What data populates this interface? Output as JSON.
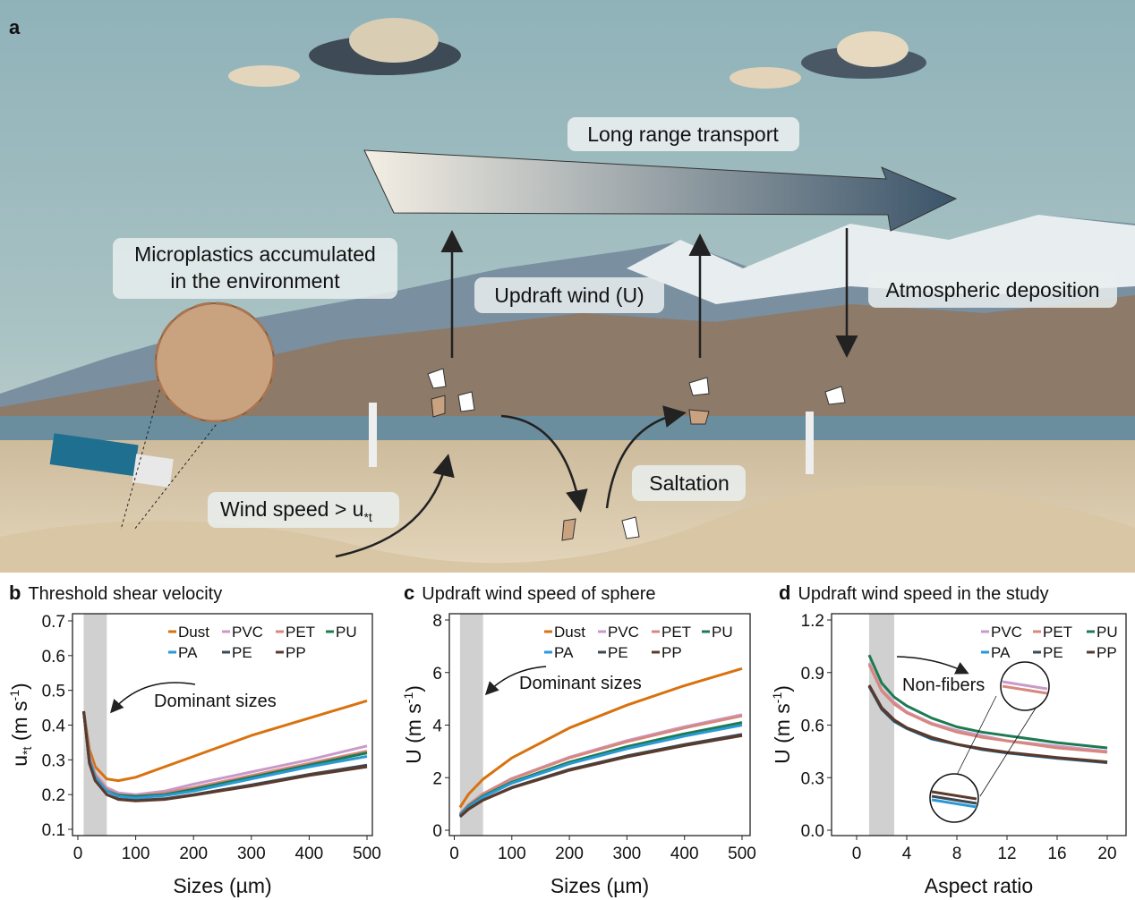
{
  "panel_a": {
    "letter": "a",
    "labels": {
      "long_range": "Long range transport",
      "micro_1": "Microplastics accumulated",
      "micro_2": "in the environment",
      "updraft": "Updraft wind (U)",
      "deposition": "Atmospheric deposition",
      "saltation": "Saltation",
      "wind_speed": "Wind speed > u",
      "wind_speed_sub": "*t"
    }
  },
  "colors": {
    "Dust": "#d8720f",
    "PVC": "#c99ac9",
    "PET": "#d8877c",
    "PU": "#1e7a50",
    "PA": "#2a9ad6",
    "PE": "#3c4853",
    "PP": "#5b3a2c",
    "band": "#d0d0d0"
  },
  "chart_data": [
    {
      "id": "b",
      "type": "line",
      "letter": "b",
      "title": "Threshold shear velocity",
      "xlabel": "Sizes (µm)",
      "ylabel": {
        "main": "u",
        "sub": "*t",
        "unit": " (m s",
        "sup": "-1",
        "close": ")"
      },
      "xlim": [
        0,
        500
      ],
      "ylim": [
        0.1,
        0.7
      ],
      "xticks": [
        "0",
        "100",
        "200",
        "300",
        "400",
        "500"
      ],
      "yticks": [
        "0.1",
        "0.2",
        "0.3",
        "0.4",
        "0.5",
        "0.6",
        "0.7"
      ],
      "shaded_range": [
        10,
        50
      ],
      "annotation": "Dominant sizes",
      "legend": [
        "Dust",
        "PVC",
        "PET",
        "PU",
        "PA",
        "PE",
        "PP"
      ],
      "x": [
        10,
        20,
        30,
        50,
        70,
        100,
        150,
        200,
        300,
        400,
        500
      ],
      "series": [
        {
          "name": "Dust",
          "values": [
            0.44,
            0.33,
            0.28,
            0.245,
            0.24,
            0.25,
            0.28,
            0.31,
            0.37,
            0.42,
            0.47
          ]
        },
        {
          "name": "PVC",
          "values": [
            0.44,
            0.31,
            0.26,
            0.22,
            0.205,
            0.2,
            0.21,
            0.23,
            0.265,
            0.3,
            0.34
          ]
        },
        {
          "name": "PET",
          "values": [
            0.44,
            0.305,
            0.255,
            0.215,
            0.2,
            0.195,
            0.205,
            0.22,
            0.255,
            0.29,
            0.325
          ]
        },
        {
          "name": "PU",
          "values": [
            0.44,
            0.3,
            0.25,
            0.21,
            0.198,
            0.195,
            0.2,
            0.215,
            0.25,
            0.285,
            0.32
          ]
        },
        {
          "name": "PA",
          "values": [
            0.44,
            0.3,
            0.25,
            0.21,
            0.195,
            0.19,
            0.197,
            0.21,
            0.245,
            0.28,
            0.31
          ]
        },
        {
          "name": "PE",
          "values": [
            0.44,
            0.29,
            0.24,
            0.2,
            0.187,
            0.183,
            0.188,
            0.2,
            0.228,
            0.258,
            0.285
          ]
        },
        {
          "name": "PP",
          "values": [
            0.44,
            0.29,
            0.24,
            0.2,
            0.186,
            0.182,
            0.186,
            0.198,
            0.225,
            0.255,
            0.28
          ]
        }
      ]
    },
    {
      "id": "c",
      "type": "line",
      "letter": "c",
      "title": "Updraft wind speed of sphere",
      "xlabel": "Sizes (µm)",
      "ylabel": {
        "main": "U",
        "sub": "",
        "unit": " (m s",
        "sup": "-1",
        "close": ")"
      },
      "xlim": [
        0,
        500
      ],
      "ylim": [
        0,
        8
      ],
      "xticks": [
        "0",
        "100",
        "200",
        "300",
        "400",
        "500"
      ],
      "yticks": [
        "0",
        "2",
        "4",
        "6",
        "8"
      ],
      "shaded_range": [
        10,
        50
      ],
      "annotation": "Dominant sizes",
      "legend": [
        "Dust",
        "PVC",
        "PET",
        "PU",
        "PA",
        "PE",
        "PP"
      ],
      "x": [
        10,
        25,
        50,
        100,
        200,
        300,
        400,
        500
      ],
      "series": [
        {
          "name": "Dust",
          "values": [
            0.87,
            1.38,
            1.94,
            2.75,
            3.89,
            4.76,
            5.5,
            6.15
          ]
        },
        {
          "name": "PVC",
          "values": [
            0.62,
            0.98,
            1.39,
            1.97,
            2.78,
            3.41,
            3.94,
            4.4
          ]
        },
        {
          "name": "PET",
          "values": [
            0.62,
            0.97,
            1.38,
            1.95,
            2.75,
            3.37,
            3.89,
            4.35
          ]
        },
        {
          "name": "PU",
          "values": [
            0.58,
            0.92,
            1.3,
            1.83,
            2.59,
            3.18,
            3.67,
            4.1
          ]
        },
        {
          "name": "PA",
          "values": [
            0.57,
            0.89,
            1.26,
            1.79,
            2.53,
            3.1,
            3.58,
            4.0
          ]
        },
        {
          "name": "PE",
          "values": [
            0.52,
            0.82,
            1.15,
            1.63,
            2.31,
            2.83,
            3.26,
            3.65
          ]
        },
        {
          "name": "PP",
          "values": [
            0.51,
            0.8,
            1.14,
            1.61,
            2.28,
            2.79,
            3.22,
            3.6
          ]
        }
      ]
    },
    {
      "id": "d",
      "type": "line",
      "letter": "d",
      "title": "Updraft wind speed in the study",
      "xlabel": "Aspect ratio",
      "ylabel": {
        "main": "U",
        "sub": "",
        "unit": " (m s",
        "sup": "-1",
        "close": ")"
      },
      "xlim": [
        0,
        20
      ],
      "ylim": [
        0,
        1.2
      ],
      "xticks": [
        "0",
        "4",
        "8",
        "12",
        "16",
        "20"
      ],
      "yticks": [
        "0.0",
        "0.3",
        "0.6",
        "0.9",
        "1.2"
      ],
      "shaded_range": [
        1,
        3
      ],
      "annotation": "Non-fibers",
      "legend": [
        "PVC",
        "PET",
        "PU",
        "PA",
        "PE",
        "PP"
      ],
      "x": [
        1,
        2,
        3,
        4,
        6,
        8,
        10,
        12,
        16,
        20
      ],
      "series": [
        {
          "name": "PVC",
          "values": [
            0.955,
            0.8,
            0.73,
            0.675,
            0.61,
            0.57,
            0.54,
            0.51,
            0.48,
            0.45
          ]
        },
        {
          "name": "PET",
          "values": [
            0.945,
            0.795,
            0.72,
            0.67,
            0.605,
            0.56,
            0.53,
            0.51,
            0.47,
            0.445
          ]
        },
        {
          "name": "PU",
          "values": [
            1.0,
            0.84,
            0.76,
            0.71,
            0.64,
            0.59,
            0.56,
            0.54,
            0.5,
            0.47
          ]
        },
        {
          "name": "PA",
          "values": [
            0.82,
            0.69,
            0.62,
            0.58,
            0.52,
            0.49,
            0.46,
            0.44,
            0.41,
            0.385
          ]
        },
        {
          "name": "PE",
          "values": [
            0.822,
            0.692,
            0.623,
            0.582,
            0.523,
            0.49,
            0.462,
            0.442,
            0.412,
            0.387
          ]
        },
        {
          "name": "PP",
          "values": [
            0.828,
            0.7,
            0.63,
            0.585,
            0.53,
            0.49,
            0.465,
            0.445,
            0.415,
            0.39
          ]
        }
      ]
    }
  ]
}
